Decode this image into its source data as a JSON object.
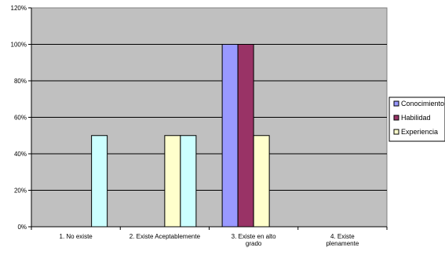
{
  "chart_data": {
    "type": "bar",
    "categories": [
      [
        "1. No existe"
      ],
      [
        "2. Existe Aceptablemente"
      ],
      [
        "3. Existe en alto",
        "grado"
      ],
      [
        "4. Existe",
        "plenamente"
      ]
    ],
    "series": [
      {
        "name": "Conocimiento",
        "values": [
          0,
          0,
          100,
          0
        ],
        "color": "#9999ff"
      },
      {
        "name": "Habilidad",
        "values": [
          0,
          0,
          100,
          0
        ],
        "color": "#993366"
      },
      {
        "name": "Experiencia",
        "values": [
          0,
          50,
          50,
          0
        ],
        "color": "#ffffcc"
      },
      {
        "name": "",
        "values": [
          50,
          50,
          0,
          0
        ],
        "color": "#ccffff"
      }
    ],
    "ylim": [
      0,
      120
    ],
    "yticks": [
      0,
      20,
      40,
      60,
      80,
      100,
      120
    ],
    "ytick_format": "percent",
    "plot_background": "#c0c0c0",
    "grid": true,
    "legend": "right",
    "title": "",
    "xlabel": "",
    "ylabel": ""
  }
}
